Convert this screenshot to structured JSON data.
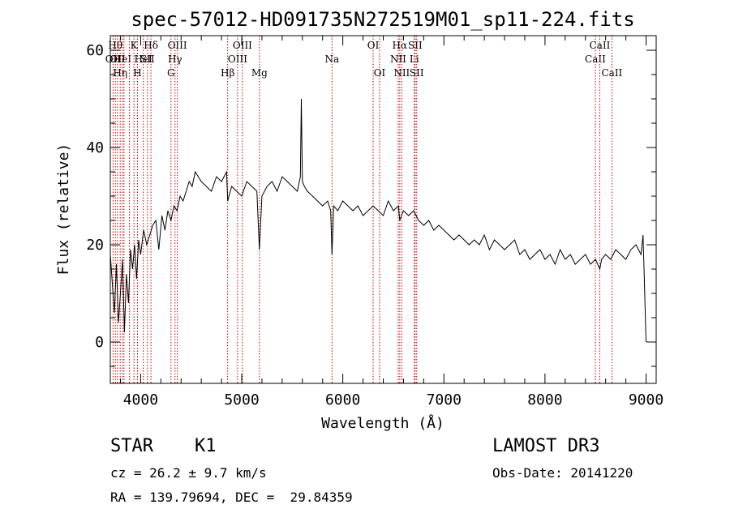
{
  "chart_data": {
    "type": "line",
    "title": "spec-57012-HD091735N272519M01_sp11-224.fits",
    "xlabel": "Wavelength (Å)",
    "ylabel": "Flux (relative)",
    "xlim": [
      3700,
      9100
    ],
    "ylim": [
      -8.5,
      63
    ],
    "xticks": [
      4000,
      5000,
      6000,
      7000,
      8000,
      9000
    ],
    "yticks": [
      0,
      20,
      40,
      60
    ],
    "series": [
      {
        "name": "flux",
        "x": [
          3700,
          3720,
          3740,
          3760,
          3780,
          3800,
          3820,
          3840,
          3860,
          3880,
          3900,
          3920,
          3940,
          3960,
          3980,
          4000,
          4030,
          4060,
          4090,
          4120,
          4150,
          4180,
          4210,
          4240,
          4270,
          4300,
          4330,
          4360,
          4390,
          4420,
          4450,
          4480,
          4510,
          4540,
          4570,
          4600,
          4650,
          4700,
          4750,
          4800,
          4850,
          4861,
          4900,
          4950,
          5000,
          5050,
          5100,
          5150,
          5175,
          5200,
          5250,
          5300,
          5350,
          5400,
          5450,
          5500,
          5550,
          5580,
          5590,
          5600,
          5620,
          5650,
          5700,
          5750,
          5800,
          5850,
          5880,
          5893,
          5910,
          5950,
          6000,
          6050,
          6100,
          6150,
          6200,
          6250,
          6300,
          6350,
          6400,
          6450,
          6500,
          6550,
          6563,
          6600,
          6650,
          6700,
          6750,
          6800,
          6850,
          6900,
          6950,
          7000,
          7050,
          7100,
          7150,
          7200,
          7250,
          7300,
          7350,
          7400,
          7450,
          7500,
          7550,
          7600,
          7650,
          7700,
          7750,
          7800,
          7850,
          7900,
          7950,
          8000,
          8050,
          8100,
          8150,
          8200,
          8250,
          8300,
          8350,
          8400,
          8450,
          8500,
          8542,
          8560,
          8600,
          8650,
          8700,
          8750,
          8800,
          8850,
          8900,
          8950,
          8970,
          8985,
          9000
        ],
        "values": [
          18,
          12,
          6,
          16,
          4,
          10,
          17,
          2,
          14,
          8,
          19,
          15,
          20,
          13,
          21,
          18,
          23,
          20,
          22,
          24,
          25,
          19,
          26,
          23,
          27,
          25,
          28,
          27,
          30,
          29,
          31,
          33,
          32,
          35,
          34,
          33,
          32,
          31,
          34,
          33,
          35,
          29,
          32,
          31,
          30,
          33,
          32,
          31,
          19,
          30,
          32,
          33,
          31,
          34,
          33,
          32,
          31,
          34,
          50,
          33,
          32,
          31,
          30,
          29,
          28,
          29,
          27,
          18,
          28,
          27,
          29,
          28,
          27,
          28,
          26,
          27,
          28,
          27,
          26,
          29,
          27,
          28,
          25,
          27,
          26,
          27,
          25,
          24,
          25,
          23,
          24,
          23,
          22,
          21,
          22,
          21,
          20,
          21,
          20,
          22,
          19,
          21,
          20,
          19,
          20,
          21,
          18,
          19,
          17,
          18,
          19,
          17,
          18,
          16,
          19,
          17,
          18,
          16,
          17,
          18,
          16,
          17,
          15,
          17,
          18,
          17,
          19,
          18,
          17,
          19,
          20,
          18,
          22,
          11,
          0
        ]
      }
    ],
    "line_markers": [
      {
        "wl": 3727,
        "label": "OII",
        "row": 1
      },
      {
        "wl": 3750,
        "label": "Hθ",
        "row": 0
      },
      {
        "wl": 3771,
        "label": "OII",
        "row": 1
      },
      {
        "wl": 3798,
        "label": "Hη",
        "row": 2
      },
      {
        "wl": 3820,
        "label": "HeI",
        "row": 1
      },
      {
        "wl": 3835,
        "label": "",
        "row": 0
      },
      {
        "wl": 3889,
        "label": "",
        "row": 0
      },
      {
        "wl": 3934,
        "label": "K",
        "row": 0
      },
      {
        "wl": 3969,
        "label": "H",
        "row": 2
      },
      {
        "wl": 4026,
        "label": "HeI",
        "row": 1
      },
      {
        "wl": 4068,
        "label": "SII",
        "row": 1
      },
      {
        "wl": 4102,
        "label": "Hδ",
        "row": 0
      },
      {
        "wl": 4300,
        "label": "G",
        "row": 2
      },
      {
        "wl": 4340,
        "label": "Hγ",
        "row": 1
      },
      {
        "wl": 4363,
        "label": "OIII",
        "row": 0
      },
      {
        "wl": 4861,
        "label": "Hβ",
        "row": 2
      },
      {
        "wl": 4959,
        "label": "OIII",
        "row": 1
      },
      {
        "wl": 5007,
        "label": "OIII",
        "row": 0
      },
      {
        "wl": 5175,
        "label": "Mg",
        "row": 2
      },
      {
        "wl": 5893,
        "label": "Na",
        "row": 1
      },
      {
        "wl": 6300,
        "label": "OI",
        "row": 0
      },
      {
        "wl": 6364,
        "label": "OI",
        "row": 2
      },
      {
        "wl": 6548,
        "label": "NII",
        "row": 1
      },
      {
        "wl": 6563,
        "label": "Hα",
        "row": 0
      },
      {
        "wl": 6583,
        "label": "NII",
        "row": 2
      },
      {
        "wl": 6707,
        "label": "Li",
        "row": 1
      },
      {
        "wl": 6716,
        "label": "SII",
        "row": 0
      },
      {
        "wl": 6731,
        "label": "SII",
        "row": 2
      },
      {
        "wl": 8498,
        "label": "CaII",
        "row": 1
      },
      {
        "wl": 8542,
        "label": "CaII",
        "row": 0
      },
      {
        "wl": 8662,
        "label": "CaII",
        "row": 2
      }
    ]
  },
  "info": {
    "class": "STAR",
    "subclass": "K1",
    "survey": "LAMOST DR3",
    "cz": "cz = 26.2 ± 9.7 km/s",
    "obs_date": "Obs-Date: 20141220",
    "coords": "RA = 139.79694, DEC =  29.84359"
  }
}
